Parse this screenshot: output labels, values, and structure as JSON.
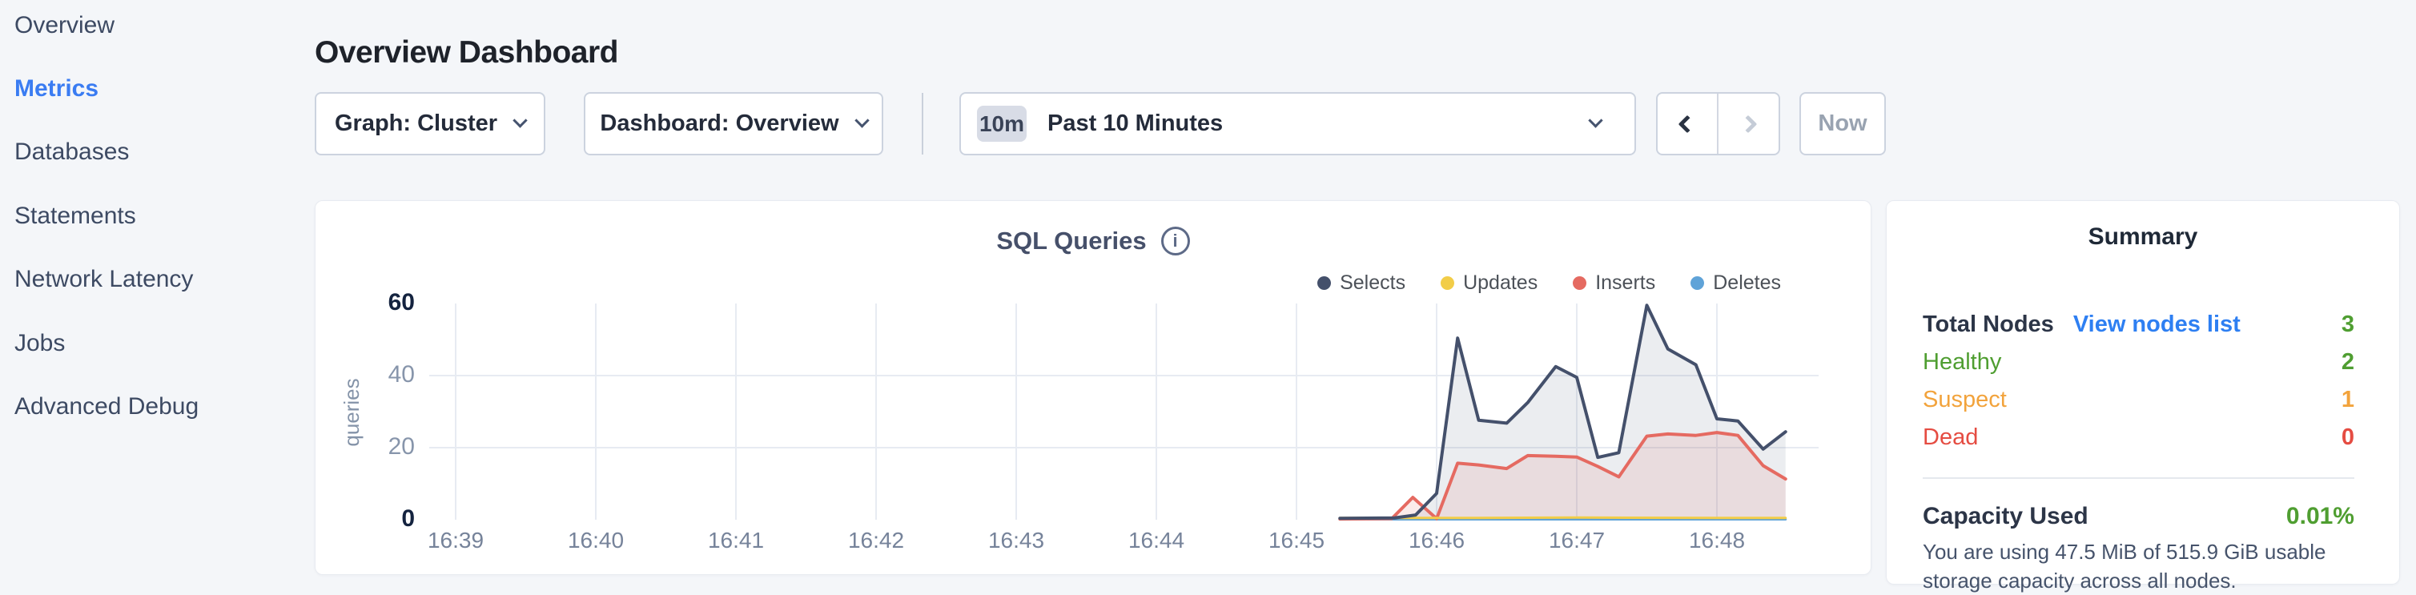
{
  "sidebar": {
    "items": [
      {
        "label": "Overview",
        "active": false
      },
      {
        "label": "Metrics",
        "active": true
      },
      {
        "label": "Databases",
        "active": false
      },
      {
        "label": "Statements",
        "active": false
      },
      {
        "label": "Network Latency",
        "active": false
      },
      {
        "label": "Jobs",
        "active": false
      },
      {
        "label": "Advanced Debug",
        "active": false
      }
    ],
    "active_color": "#3a7cf2"
  },
  "header": {
    "title": "Overview Dashboard"
  },
  "toolbar": {
    "graph_label": "Graph: Cluster",
    "dashboard_label": "Dashboard: Overview",
    "time_badge": "10m",
    "time_label": "Past 10 Minutes",
    "now_label": "Now"
  },
  "icons": {
    "info": "i"
  },
  "chart_data": {
    "type": "line",
    "title": "SQL Queries",
    "ylabel": "queries",
    "x_axis": {
      "start": "16:39",
      "minutes_per_tick": 1
    },
    "x_ticks": [
      "16:39",
      "16:40",
      "16:41",
      "16:42",
      "16:43",
      "16:44",
      "16:45",
      "16:46",
      "16:47",
      "16:48"
    ],
    "yticks": [
      0,
      20,
      40,
      60
    ],
    "ylim": [
      0,
      60
    ],
    "grid": true,
    "legend_position": "top-right",
    "series": [
      {
        "name": "Selects",
        "color": "#44506b",
        "fill": true,
        "fill_color": "rgba(93,108,135,0.12)",
        "width": 4,
        "points": [
          [
            6.31,
            0.4
          ],
          [
            6.7,
            0.5
          ],
          [
            6.85,
            1.3
          ],
          [
            7.0,
            7.3
          ],
          [
            7.15,
            50.4
          ],
          [
            7.3,
            27.6
          ],
          [
            7.5,
            26.8
          ],
          [
            7.65,
            32.5
          ],
          [
            7.85,
            42.5
          ],
          [
            8.0,
            39.5
          ],
          [
            8.15,
            17.3
          ],
          [
            8.3,
            18.6
          ],
          [
            8.5,
            59.5
          ],
          [
            8.65,
            47.4
          ],
          [
            8.85,
            43.0
          ],
          [
            9.0,
            28.0
          ],
          [
            9.15,
            27.4
          ],
          [
            9.33,
            19.6
          ],
          [
            9.49,
            24.4
          ]
        ]
      },
      {
        "name": "Updates",
        "color": "#f2cd48",
        "fill": false,
        "fill_color": null,
        "width": 3,
        "points": [
          [
            6.31,
            0.5
          ],
          [
            7.3,
            0.5
          ],
          [
            8.0,
            0.6
          ],
          [
            9.0,
            0.5
          ],
          [
            9.49,
            0.5
          ]
        ]
      },
      {
        "name": "Inserts",
        "color": "#e56a61",
        "fill": true,
        "fill_color": "rgba(226,106,98,0.13)",
        "width": 4,
        "points": [
          [
            6.31,
            0.2
          ],
          [
            6.68,
            0.3
          ],
          [
            6.83,
            6.2
          ],
          [
            7.0,
            0.3
          ],
          [
            7.15,
            15.7
          ],
          [
            7.3,
            15.2
          ],
          [
            7.5,
            14.2
          ],
          [
            7.65,
            17.8
          ],
          [
            7.85,
            17.6
          ],
          [
            8.0,
            17.4
          ],
          [
            8.15,
            14.8
          ],
          [
            8.3,
            11.9
          ],
          [
            8.5,
            23.2
          ],
          [
            8.65,
            23.8
          ],
          [
            8.85,
            23.4
          ],
          [
            9.0,
            24.2
          ],
          [
            9.15,
            23.4
          ],
          [
            9.33,
            15.0
          ],
          [
            9.49,
            11.3
          ]
        ]
      },
      {
        "name": "Deletes",
        "color": "#5fa3d8",
        "fill": false,
        "fill_color": null,
        "width": 3,
        "points": [
          [
            6.31,
            0.1
          ],
          [
            9.49,
            0.1
          ]
        ]
      }
    ]
  },
  "summary": {
    "title": "Summary",
    "total_nodes_label": "Total Nodes",
    "view_nodes_link": "View nodes list",
    "total_nodes_value": "3",
    "total_nodes_color": "#4f9e31",
    "rows": [
      {
        "label": "Healthy",
        "value": "2",
        "color": "#4f9e31"
      },
      {
        "label": "Suspect",
        "value": "1",
        "color": "#f2a33c"
      },
      {
        "label": "Dead",
        "value": "0",
        "color": "#e54c42"
      }
    ],
    "capacity_label": "Capacity Used",
    "capacity_value": "0.01%",
    "capacity_value_color": "#4f9e31",
    "capacity_text": "You are using 47.5 MiB of 515.9 GiB usable storage capacity across all nodes."
  }
}
